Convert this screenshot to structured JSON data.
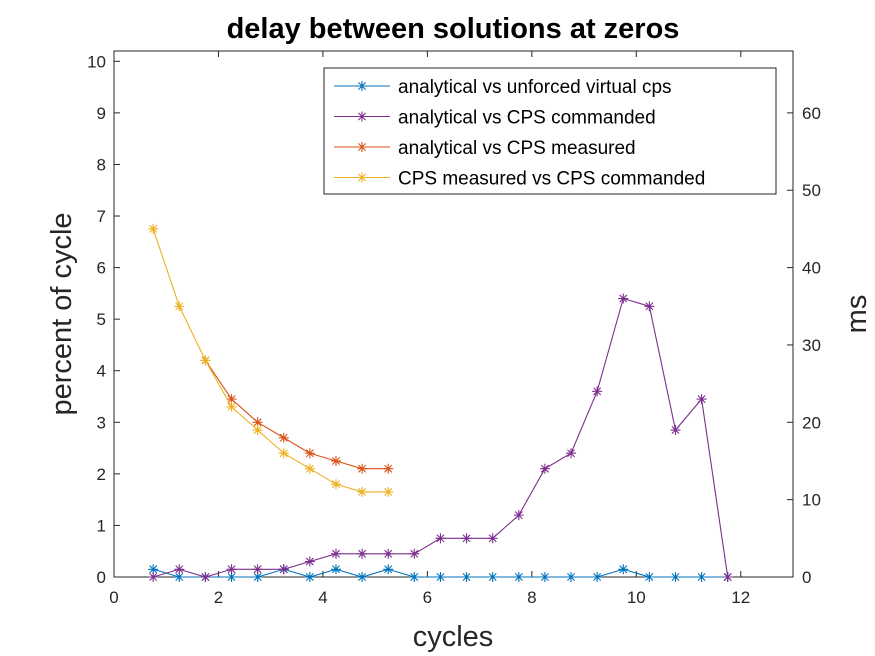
{
  "chart_data": {
    "type": "line",
    "title": "delay between solutions at zeros",
    "xlabel": "cycles",
    "ylabel": "percent of cycle",
    "y2label": "ms",
    "xlim": [
      0,
      13
    ],
    "ylim": [
      0,
      10.2
    ],
    "y2lim": [
      0,
      68
    ],
    "xticks": [
      "0",
      "2",
      "4",
      "6",
      "8",
      "10",
      "12"
    ],
    "yticks": [
      "0",
      "1",
      "2",
      "3",
      "4",
      "5",
      "6",
      "7",
      "8",
      "9",
      "10"
    ],
    "y2ticks": [
      "0",
      "10",
      "20",
      "30",
      "40",
      "50",
      "60"
    ],
    "legend_position": "top-right",
    "grid": false,
    "series": [
      {
        "name": "analytical vs unforced virtual cps",
        "color": "#0072BD",
        "x": [
          0.75,
          1.25,
          1.75,
          2.25,
          2.75,
          3.25,
          3.75,
          4.25,
          4.75,
          5.25,
          5.75,
          6.25,
          6.75,
          7.25,
          7.75,
          8.25,
          8.75,
          9.25,
          9.75,
          10.25,
          10.75,
          11.25,
          11.75
        ],
        "y": [
          0.15,
          0,
          0,
          0,
          0,
          0.15,
          0,
          0.15,
          0,
          0.15,
          0,
          0,
          0,
          0,
          0,
          0,
          0,
          0,
          0.15,
          0,
          0,
          0,
          0
        ]
      },
      {
        "name": "analytical vs CPS commanded",
        "color": "#7E2F8E",
        "x": [
          0.75,
          1.25,
          1.75,
          2.25,
          2.75,
          3.25,
          3.75,
          4.25,
          4.75,
          5.25,
          5.75,
          6.25,
          6.75,
          7.25,
          7.75,
          8.25,
          8.75,
          9.25,
          9.75,
          10.25,
          10.75,
          11.25,
          11.75
        ],
        "y": [
          0,
          0.15,
          0,
          0.15,
          0.15,
          0.15,
          0.3,
          0.45,
          0.45,
          0.45,
          0.45,
          0.75,
          0.75,
          0.75,
          1.2,
          2.1,
          2.4,
          3.6,
          5.4,
          5.25,
          2.85,
          3.45,
          0
        ]
      },
      {
        "name": "analytical vs CPS measured",
        "color": "#D95319",
        "x": [
          1.75,
          2.25,
          2.75,
          3.25,
          3.75,
          4.25,
          4.75,
          5.25
        ],
        "y": [
          4.2,
          3.45,
          3.0,
          2.7,
          2.4,
          2.25,
          2.1,
          2.1
        ]
      },
      {
        "name": "CPS measured vs CPS commanded",
        "color": "#EDB120",
        "x": [
          0.75,
          1.25,
          1.75,
          2.25,
          2.75,
          3.25,
          3.75,
          4.25,
          4.75,
          5.25
        ],
        "y": [
          6.75,
          5.25,
          4.2,
          3.3,
          2.85,
          2.4,
          2.1,
          1.8,
          1.65,
          1.65
        ]
      }
    ]
  }
}
